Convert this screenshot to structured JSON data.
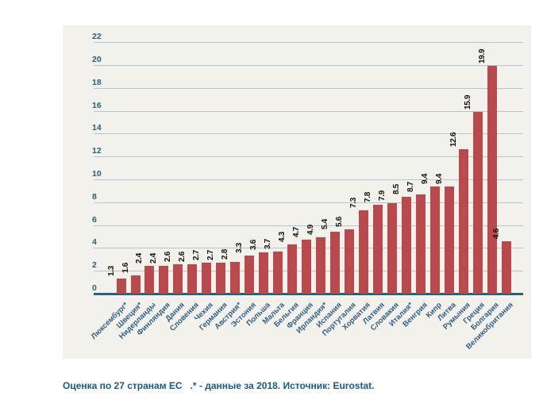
{
  "chart_data": {
    "type": "bar",
    "title": "",
    "xlabel": "",
    "ylabel": "",
    "categories": [
      "Люксембург*",
      "Швеция*",
      "Нидерланды",
      "Финляндия",
      "Дания",
      "Словения",
      "Чехия",
      "Германия",
      "Австрия*",
      "Эстония",
      "Польша",
      "Мальта",
      "Бельгия",
      "Франция",
      "Ирландия*",
      "Испания",
      "Португалия",
      "Хорватия",
      "Латвия",
      "Словакия",
      "Италия*",
      "Венгрия",
      "Кипр",
      "Литва",
      "Румыния",
      "Греция",
      "Болгария",
      "Великобритания"
    ],
    "values": [
      1.3,
      1.6,
      2.4,
      2.4,
      2.6,
      2.6,
      2.7,
      2.7,
      2.8,
      3.3,
      3.6,
      3.7,
      4.3,
      4.7,
      4.9,
      5.4,
      5.6,
      7.3,
      7.8,
      7.9,
      8.5,
      8.7,
      9.4,
      9.4,
      12.6,
      15.9,
      19.9,
      4.6
    ],
    "value_labels": [
      "1.3",
      "1.6",
      "2.4",
      "2.4",
      "2.6",
      "2.6",
      "2.7",
      "2.7",
      "2.8",
      "3.3",
      "3.6",
      "3.7",
      "4.3",
      "4.7",
      "4.9",
      "5.4",
      "5.6",
      "7.3",
      "7.8",
      "7.9",
      "8.5",
      "8.7",
      "9.4",
      "9.4",
      "12.6",
      "15.9",
      "19.9",
      "4.6"
    ],
    "ylim": [
      0,
      22
    ],
    "ytick_interval": 2,
    "grid": "horizontal",
    "legend_position": "none",
    "category_label_rotation_deg": 45,
    "value_label_rotation_deg": 90
  },
  "caption": "Оценка по 27 странам ЕС   .* - данные за 2018. Источник: Eurostat.",
  "colors": {
    "bar": "#b8494d",
    "panel_bg": "#f2f1eb",
    "gridline": "#b7c6cd",
    "axis_line": "#2c6075",
    "tick_label": "#26607a",
    "category_label": "#2f5e82",
    "value_label": "#111111",
    "caption": "#17598a"
  }
}
